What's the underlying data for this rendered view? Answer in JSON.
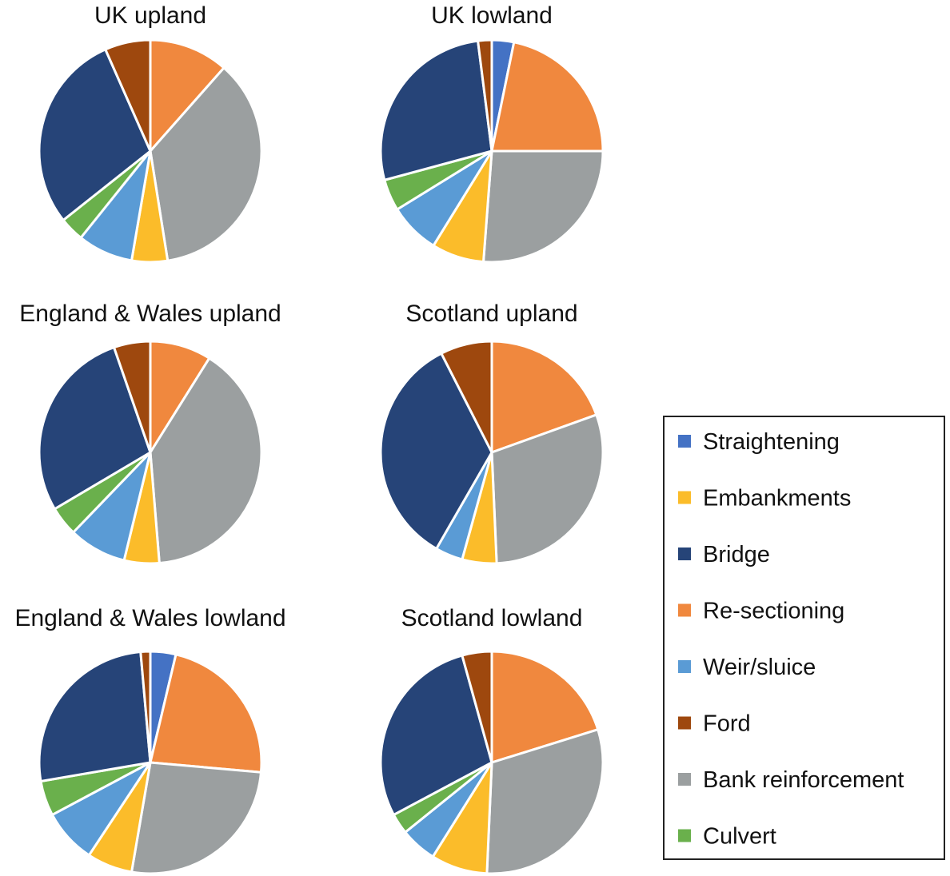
{
  "categories": [
    "Straightening",
    "Embankments",
    "Bridge",
    "Re-sectioning",
    "Weir/sluice",
    "Ford",
    "Bank reinforcement",
    "Culvert"
  ],
  "colors": {
    "Straightening": "#4472c4",
    "Embankments": "#fbbc2a",
    "Bridge": "#264478",
    "Re-sectioning": "#f0883e",
    "Weir/sluice": "#5a9bd5",
    "Ford": "#9e480e",
    "Bank reinforcement": "#9b9fa0",
    "Culvert": "#6ab04c"
  },
  "legend": {
    "placement": "bottom-right",
    "items": [
      "Straightening",
      "Embankments",
      "Bridge",
      "Re-sectioning",
      "Weir/sluice",
      "Ford",
      "Bank reinforcement",
      "Culvert"
    ]
  },
  "chart_data": [
    {
      "type": "pie",
      "title": "UK upland",
      "order": [
        "Re-sectioning",
        "Bank reinforcement",
        "Embankments",
        "Weir/sluice",
        "Culvert",
        "Bridge",
        "Ford"
      ],
      "values": [
        11.3,
        35.3,
        5.1,
        7.9,
        3.5,
        28.5,
        6.5
      ]
    },
    {
      "type": "pie",
      "title": "UK lowland",
      "order": [
        "Straightening",
        "Re-sectioning",
        "Bank reinforcement",
        "Embankments",
        "Weir/sluice",
        "Culvert",
        "Bridge",
        "Ford"
      ],
      "values": [
        3.2,
        21.8,
        26.2,
        7.6,
        7.4,
        4.6,
        27.2,
        2.0
      ]
    },
    {
      "type": "pie",
      "title": "England & Wales upland",
      "order": [
        "Re-sectioning",
        "Bank reinforcement",
        "Embankments",
        "Weir/sluice",
        "Culvert",
        "Bridge",
        "Ford"
      ],
      "values": [
        8.9,
        39.8,
        5.1,
        8.4,
        4.3,
        28.2,
        5.3
      ]
    },
    {
      "type": "pie",
      "title": "Scotland upland",
      "order": [
        "Re-sectioning",
        "Bank reinforcement",
        "Embankments",
        "Weir/sluice",
        "Bridge",
        "Ford"
      ],
      "values": [
        19.5,
        29.8,
        5.0,
        4.0,
        34.2,
        7.5
      ]
    },
    {
      "type": "pie",
      "title": "England & Wales lowland",
      "order": [
        "Straightening",
        "Re-sectioning",
        "Bank reinforcement",
        "Embankments",
        "Weir/sluice",
        "Culvert",
        "Bridge",
        "Ford"
      ],
      "values": [
        3.7,
        22.7,
        26.3,
        6.6,
        7.9,
        5.1,
        26.3,
        1.4
      ]
    },
    {
      "type": "pie",
      "title": "Scotland lowland",
      "order": [
        "Re-sectioning",
        "Bank reinforcement",
        "Embankments",
        "Weir/sluice",
        "Culvert",
        "Bridge",
        "Ford"
      ],
      "values": [
        20.2,
        30.5,
        8.2,
        5.3,
        3.0,
        28.5,
        4.3
      ]
    }
  ]
}
